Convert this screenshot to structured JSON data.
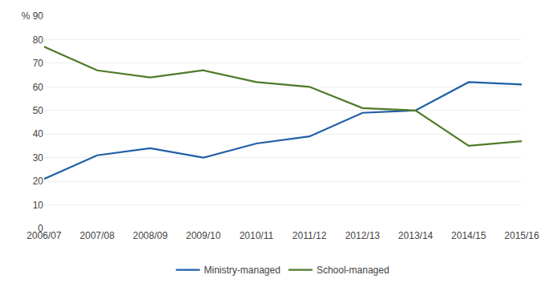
{
  "chart_data": {
    "type": "line",
    "categories": [
      "2006/07",
      "2007/08",
      "2008/09",
      "2009/10",
      "2010/11",
      "2011/12",
      "2012/13",
      "2013/14",
      "2014/15",
      "2015/16"
    ],
    "series": [
      {
        "name": "Ministry-managed",
        "color": "#1f5fa6",
        "values": [
          21,
          31,
          34,
          30,
          36,
          39,
          49,
          50,
          62,
          61
        ]
      },
      {
        "name": "School-managed",
        "color": "#4f7a28",
        "values": [
          77,
          67,
          64,
          67,
          62,
          60,
          51,
          50,
          35,
          37
        ]
      }
    ],
    "ylim": [
      0,
      90
    ],
    "yticks": [
      0,
      10,
      20,
      30,
      40,
      50,
      60,
      70,
      80,
      {
        "value": 90,
        "label": "% 90"
      }
    ],
    "grid": true,
    "legend": "bottom"
  }
}
